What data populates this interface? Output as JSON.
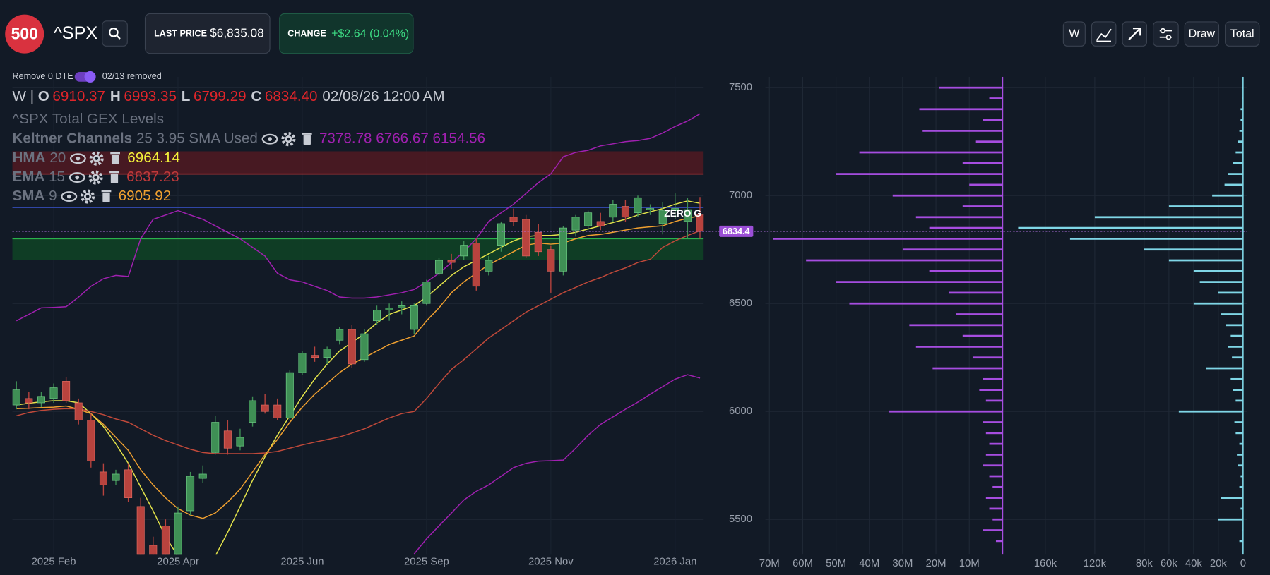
{
  "header": {
    "logo": "500",
    "symbol": "^SPX",
    "last_price_label": "LAST PRICE",
    "last_price": "$6,835.08",
    "change_label": "CHANGE",
    "change": "+$2.64 (0.04%)",
    "buttons": [
      "W",
      "Draw",
      "Total"
    ]
  },
  "filter": {
    "label": "Remove 0 DTE",
    "note": "02/13 removed"
  },
  "legend": {
    "interval": "W",
    "separator": "|",
    "letters": [
      "O",
      "H",
      "L",
      "C"
    ],
    "values": [
      "6910.37",
      "6993.35",
      "6799.29",
      "6834.40"
    ],
    "time": "02/08/26 12:00 AM",
    "study": "^SPX Total GEX Levels"
  },
  "chart_data": [
    {
      "type": "candlestick",
      "categories": [
        null,
        null,
        null,
        "2025 Feb",
        null,
        null,
        null,
        null,
        null,
        null,
        null,
        null,
        null,
        "2025 Apr",
        null,
        null,
        null,
        null,
        null,
        null,
        null,
        null,
        null,
        "2025 Jun",
        null,
        null,
        null,
        null,
        null,
        null,
        null,
        null,
        null,
        "2025 Sep",
        null,
        null,
        null,
        null,
        null,
        null,
        null,
        null,
        null,
        "2025 Nov",
        null,
        null,
        null,
        null,
        null,
        null,
        null,
        null,
        null,
        "2026 Jan",
        null,
        null
      ],
      "open": [
        6030,
        6060,
        6040,
        6060,
        6140,
        6040,
        5960,
        5720,
        5680,
        5730,
        5560,
        5380,
        5470,
        5340,
        5540,
        5690,
        5810,
        5910,
        5840,
        5950,
        6030,
        6030,
        5970,
        6180,
        6260,
        6250,
        6330,
        6380,
        6240,
        6420,
        6470,
        6480,
        6380,
        6500,
        6640,
        6700,
        6720,
        6780,
        6650,
        6770,
        6900,
        6890,
        6830,
        6750,
        6650,
        6840,
        6860,
        6880,
        6900,
        6950,
        6920,
        6935,
        6870,
        6930,
        6880,
        6910.37
      ],
      "high": [
        6140,
        6090,
        6090,
        6130,
        6160,
        6060,
        5990,
        5760,
        5730,
        5760,
        5600,
        5420,
        5500,
        5560,
        5720,
        5750,
        5980,
        5960,
        5920,
        6070,
        6080,
        6060,
        6190,
        6280,
        6300,
        6300,
        6390,
        6400,
        6380,
        6490,
        6500,
        6510,
        6500,
        6610,
        6710,
        6730,
        6790,
        6800,
        6720,
        6880,
        6940,
        6910,
        6870,
        6770,
        6860,
        6910,
        6930,
        6920,
        6980,
        6980,
        7000,
        6960,
        6970,
        7010,
        6990,
        6993.35
      ],
      "low": [
        6010,
        6010,
        6020,
        6040,
        6040,
        5940,
        5740,
        5610,
        5660,
        5580,
        5300,
        5250,
        5300,
        5300,
        5520,
        5670,
        5800,
        5800,
        5820,
        5930,
        5990,
        5960,
        5960,
        6170,
        6230,
        6220,
        6310,
        6200,
        6230,
        6400,
        6420,
        6450,
        6360,
        6490,
        6630,
        6660,
        6700,
        6560,
        6630,
        6740,
        6860,
        6710,
        6720,
        6550,
        6630,
        6810,
        6840,
        6840,
        6880,
        6880,
        6900,
        6910,
        6820,
        6890,
        6800,
        6799.29
      ],
      "close": [
        6100,
        6040,
        6070,
        6110,
        6050,
        5960,
        5770,
        5660,
        5710,
        5600,
        5340,
        5300,
        5340,
        5530,
        5700,
        5710,
        5950,
        5830,
        5880,
        6050,
        6000,
        5970,
        6180,
        6270,
        6250,
        6290,
        6380,
        6220,
        6360,
        6470,
        6480,
        6490,
        6490,
        6600,
        6700,
        6690,
        6770,
        6580,
        6700,
        6870,
        6880,
        6720,
        6740,
        6650,
        6850,
        6900,
        6920,
        6860,
        6960,
        6900,
        6990,
        6940,
        6930,
        6940,
        6935,
        6834.4
      ],
      "up_color": "#3f8f55",
      "down_color": "#b8433e",
      "ylim": [
        5340,
        7550
      ],
      "yticks": [
        5500,
        6000,
        6500,
        7000,
        7500
      ],
      "grid": true,
      "series": [
        {
          "name": "Keltner Channels",
          "params": "25 3.95 SMA Used",
          "color": "#a020b0",
          "last_values": [
            7378.78,
            6766.67,
            6154.56
          ],
          "upper": [
            6420,
            6450,
            6480,
            6482,
            6485,
            6530,
            6580,
            6615,
            6630,
            6625,
            6800,
            6890,
            6910,
            6930,
            6910,
            6890,
            6860,
            6830,
            6800,
            6760,
            6720,
            6640,
            6610,
            6600,
            6580,
            6560,
            6530,
            6525,
            6525,
            6530,
            6540,
            6550,
            6565,
            6600,
            6640,
            6690,
            6740,
            6800,
            6880,
            6920,
            6960,
            7010,
            7060,
            7100,
            7180,
            7200,
            7210,
            7230,
            7240,
            7250,
            7255,
            7265,
            7290,
            7320,
            7345,
            7378.78
          ],
          "lower": [
            null,
            null,
            null,
            null,
            null,
            null,
            null,
            null,
            null,
            null,
            null,
            null,
            null,
            null,
            null,
            null,
            null,
            null,
            null,
            null,
            null,
            null,
            null,
            null,
            null,
            null,
            null,
            null,
            null,
            null,
            null,
            null,
            5340,
            5410,
            5470,
            5530,
            5590,
            5630,
            5660,
            5700,
            5740,
            5760,
            5770,
            5772,
            5775,
            5830,
            5890,
            5940,
            5975,
            6010,
            6043,
            6080,
            6115,
            6150,
            6170,
            6154.56
          ]
        },
        {
          "name": "HMA",
          "params": "20",
          "color": "#e3e34a",
          "last_value": 6964.14,
          "values": [
            6030,
            6038,
            6045,
            6050,
            6050,
            6040,
            5990,
            5930,
            5850,
            5760,
            5650,
            5540,
            5420,
            5330,
            5260,
            5250,
            5330,
            5440,
            5560,
            5680,
            5790,
            5890,
            5980,
            6070,
            6150,
            6220,
            6280,
            6320,
            6360,
            6410,
            6450,
            6470,
            6490,
            6530,
            6580,
            6630,
            6670,
            6700,
            6730,
            6760,
            6790,
            6810,
            6815,
            6815,
            6820,
            6830,
            6845,
            6860,
            6875,
            6890,
            6910,
            6925,
            6940,
            6960,
            6975,
            6964.14
          ]
        },
        {
          "name": "EMA",
          "params": "15",
          "color": "#c0493a",
          "last_value": 6837.23,
          "values": [
            5980,
            5995,
            6005,
            6010,
            6013,
            6012,
            6000,
            5985,
            5965,
            5950,
            5920,
            5890,
            5865,
            5845,
            5825,
            5810,
            5805,
            5805,
            5805,
            5805,
            5808,
            5815,
            5830,
            5845,
            5858,
            5870,
            5882,
            5900,
            5920,
            5945,
            5970,
            5990,
            6000,
            6060,
            6130,
            6195,
            6240,
            6290,
            6340,
            6380,
            6420,
            6460,
            6490,
            6520,
            6550,
            6575,
            6600,
            6620,
            6645,
            6665,
            6690,
            6705,
            6760,
            6790,
            6815,
            6837.23
          ]
        },
        {
          "name": "SMA",
          "params": "9",
          "color": "#f0a030",
          "last_value": 6905.92,
          "values": [
            6013,
            6015,
            6018,
            6020,
            6025,
            6010,
            5990,
            5940,
            5880,
            5820,
            5730,
            5660,
            5600,
            5550,
            5520,
            5505,
            5530,
            5580,
            5640,
            5720,
            5800,
            5870,
            5950,
            6020,
            6080,
            6130,
            6180,
            6220,
            6250,
            6280,
            6310,
            6330,
            6350,
            6420,
            6480,
            6550,
            6600,
            6640,
            6680,
            6710,
            6740,
            6770,
            6780,
            6775,
            6780,
            6800,
            6815,
            6820,
            6830,
            6840,
            6850,
            6855,
            6860,
            6880,
            6895,
            6905.92
          ]
        }
      ],
      "zones": [
        {
          "from": 7100,
          "to": 7205,
          "color": "#5a1a22"
        },
        {
          "from": 6700,
          "to": 6800,
          "color": "#0f4a26"
        }
      ],
      "levels": [
        {
          "value": 7100,
          "color": "#d03a3a"
        },
        {
          "value": 6945,
          "color": "#3a55d0",
          "label": "ZERO G"
        },
        {
          "value": 6800,
          "color": "#2bb24c"
        }
      ],
      "price_line": 6834.4
    },
    {
      "type": "hbar",
      "color": "#a64de0",
      "y": [
        5400,
        5450,
        5500,
        5550,
        5600,
        5650,
        5700,
        5750,
        5800,
        5850,
        5900,
        5950,
        6000,
        6050,
        6100,
        6150,
        6200,
        6250,
        6300,
        6350,
        6400,
        6450,
        6500,
        6550,
        6600,
        6650,
        6700,
        6750,
        6800,
        6850,
        6900,
        6950,
        7000,
        7050,
        7100,
        7150,
        7200,
        7250,
        7300,
        7350,
        7400,
        7450,
        7500
      ],
      "values": [
        2000000,
        6000000,
        3000000,
        4000000,
        5000000,
        3000000,
        4000000,
        6000000,
        5000000,
        4000000,
        5000000,
        6000000,
        34000000,
        5000000,
        7000000,
        6000000,
        21000000,
        9000000,
        26000000,
        12000000,
        28000000,
        14000000,
        46000000,
        16000000,
        50000000,
        22000000,
        59000000,
        30000000,
        69000000,
        22000000,
        26000000,
        12000000,
        33000000,
        10000000,
        50000000,
        12000000,
        43000000,
        8000000,
        24000000,
        6000000,
        25000000,
        4000000,
        19000000
      ],
      "xlim": [
        0,
        70000000
      ],
      "xticks": [
        {
          "value": 70000000,
          "label": "70M"
        },
        {
          "value": 60000000,
          "label": "60M"
        },
        {
          "value": 50000000,
          "label": "50M"
        },
        {
          "value": 40000000,
          "label": "40M"
        },
        {
          "value": 30000000,
          "label": "30M"
        },
        {
          "value": 20000000,
          "label": "20M"
        },
        {
          "value": 10000000,
          "label": "10M"
        }
      ]
    },
    {
      "type": "hbar",
      "color": "#7fd6e6",
      "y": [
        5400,
        5450,
        5500,
        5550,
        5600,
        5650,
        5700,
        5750,
        5800,
        5850,
        5900,
        5950,
        6000,
        6050,
        6100,
        6150,
        6200,
        6250,
        6300,
        6350,
        6400,
        6450,
        6500,
        6550,
        6600,
        6650,
        6700,
        6750,
        6800,
        6850,
        6900,
        6950,
        7000,
        7050,
        7100,
        7150,
        7200,
        7250,
        7300,
        7350,
        7400,
        7450,
        7500
      ],
      "values": [
        3000,
        1000,
        20000,
        2000,
        18000,
        3000,
        2000,
        4000,
        5000,
        3000,
        6000,
        7000,
        52000,
        6000,
        8000,
        10000,
        30000,
        9000,
        12000,
        10000,
        14000,
        18000,
        40000,
        20000,
        35000,
        40000,
        60000,
        80000,
        140000,
        182000,
        120000,
        60000,
        25000,
        15000,
        12000,
        8000,
        6000,
        4000,
        3000,
        2000,
        2000,
        1000,
        1000
      ],
      "xlim": [
        0,
        190000
      ],
      "xticks": [
        {
          "value": 160000,
          "label": "160k"
        },
        {
          "value": 120000,
          "label": "120k"
        },
        {
          "value": 80000,
          "label": "80k"
        },
        {
          "value": 60000,
          "label": "60k"
        },
        {
          "value": 40000,
          "label": "40k"
        },
        {
          "value": 20000,
          "label": "20k"
        },
        0
      ]
    }
  ]
}
